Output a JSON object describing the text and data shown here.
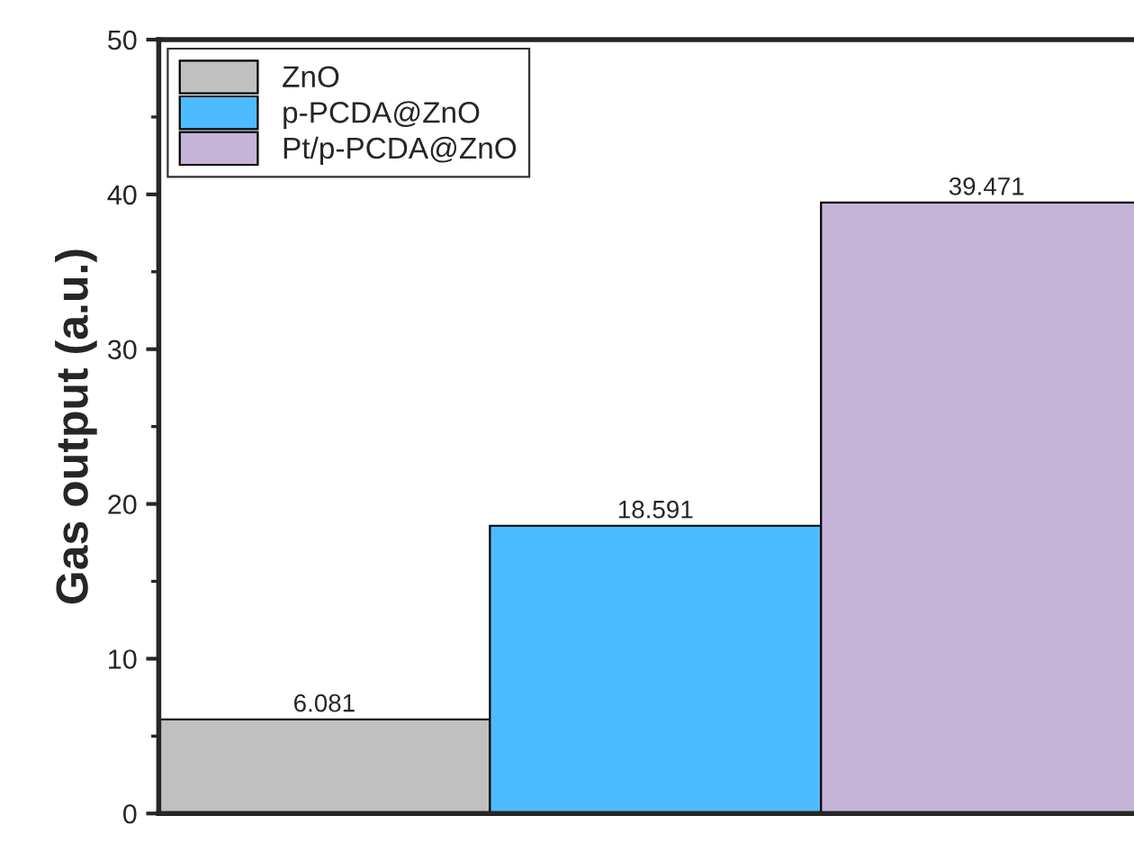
{
  "chart_data": {
    "type": "bar",
    "ylabel": "Gas output (a.u.)",
    "categories": [
      null,
      null,
      null
    ],
    "series": [
      {
        "name": "ZnO",
        "color": "#c0c0c0",
        "values": [
          6.081,
          null,
          null
        ]
      },
      {
        "name": "p-PCDA@ZnO",
        "color": "#4dbbff",
        "values": [
          null,
          18.591,
          null
        ]
      },
      {
        "name": "Pt/p-PCDA@ZnO",
        "color": "#c6b4d8",
        "values": [
          null,
          null,
          39.471
        ]
      }
    ],
    "ylim": [
      0,
      50
    ],
    "yticks": [
      0,
      10,
      20,
      30,
      40,
      50
    ],
    "data_labels": true,
    "legend": "top left",
    "grid": false,
    "tick_labels": "y"
  }
}
